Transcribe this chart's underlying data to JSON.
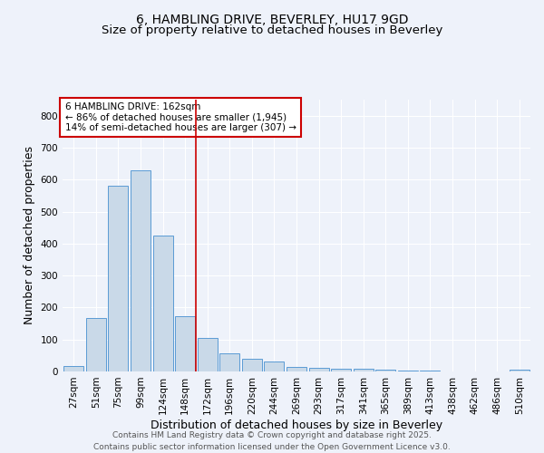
{
  "title_line1": "6, HAMBLING DRIVE, BEVERLEY, HU17 9GD",
  "title_line2": "Size of property relative to detached houses in Beverley",
  "xlabel": "Distribution of detached houses by size in Beverley",
  "ylabel": "Number of detached properties",
  "categories": [
    "27sqm",
    "51sqm",
    "75sqm",
    "99sqm",
    "124sqm",
    "148sqm",
    "172sqm",
    "196sqm",
    "220sqm",
    "244sqm",
    "269sqm",
    "293sqm",
    "317sqm",
    "341sqm",
    "365sqm",
    "389sqm",
    "413sqm",
    "438sqm",
    "462sqm",
    "486sqm",
    "510sqm"
  ],
  "values": [
    18,
    168,
    580,
    630,
    425,
    172,
    105,
    57,
    40,
    30,
    15,
    10,
    9,
    8,
    5,
    3,
    2,
    0,
    0,
    0,
    5
  ],
  "bar_color": "#c9d9e8",
  "bar_edge_color": "#5b9bd5",
  "background_color": "#eef2fa",
  "grid_color": "#ffffff",
  "annotation_box_text": "6 HAMBLING DRIVE: 162sqm\n← 86% of detached houses are smaller (1,945)\n14% of semi-detached houses are larger (307) →",
  "annotation_box_color": "#ffffff",
  "annotation_box_edge_color": "#cc0000",
  "vline_x": 5.5,
  "vline_color": "#cc0000",
  "ylim": [
    0,
    850
  ],
  "yticks": [
    0,
    100,
    200,
    300,
    400,
    500,
    600,
    700,
    800
  ],
  "footer_line1": "Contains HM Land Registry data © Crown copyright and database right 2025.",
  "footer_line2": "Contains public sector information licensed under the Open Government Licence v3.0.",
  "title_fontsize": 10,
  "subtitle_fontsize": 9.5,
  "axis_label_fontsize": 9,
  "tick_fontsize": 7.5,
  "annotation_fontsize": 7.5,
  "footer_fontsize": 6.5
}
